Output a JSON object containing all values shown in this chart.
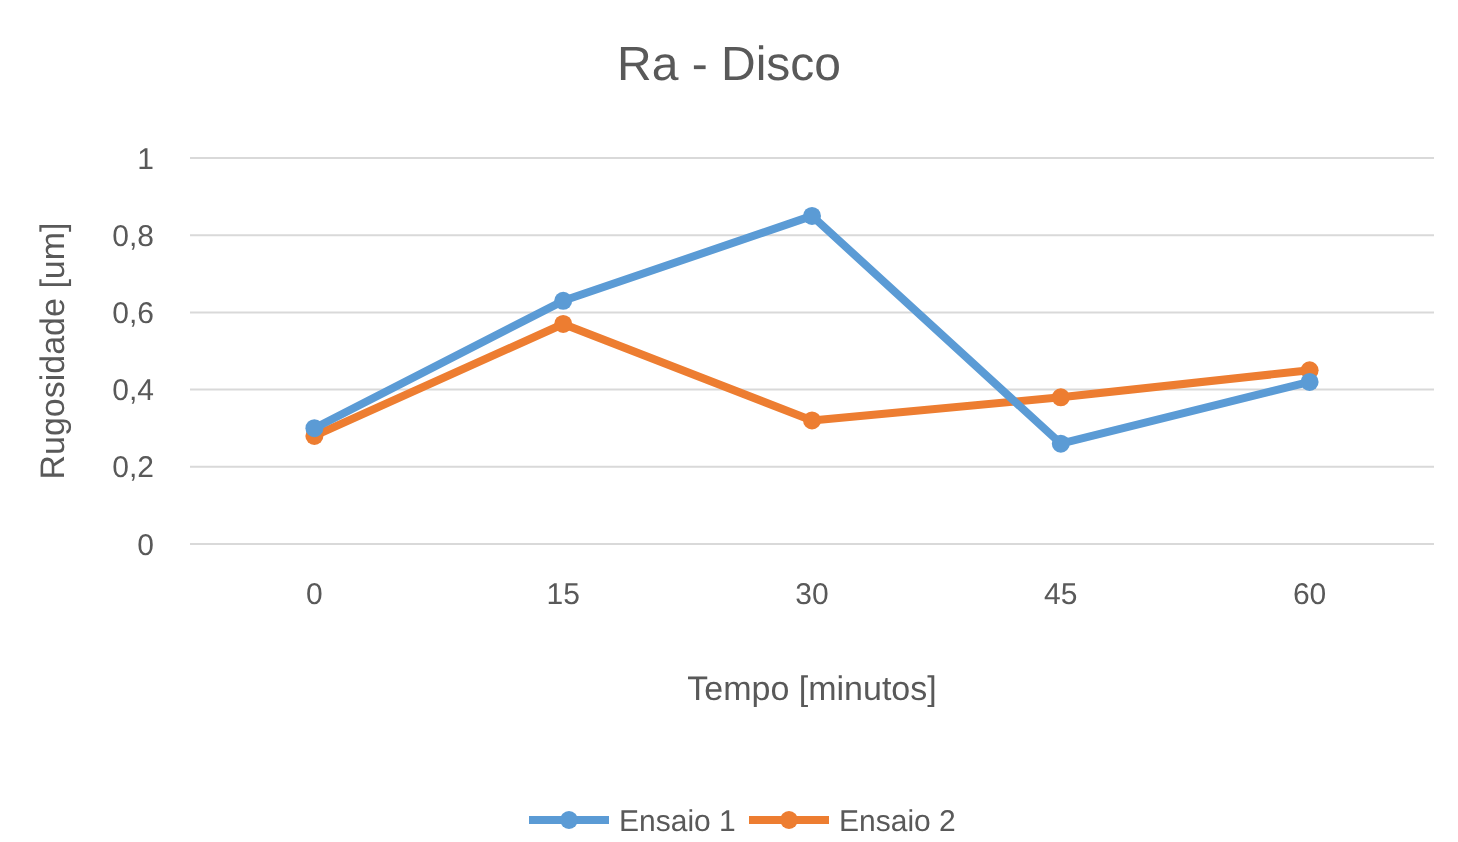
{
  "chart_data": {
    "type": "line",
    "title": "Ra - Disco",
    "xlabel": "Tempo [minutos]",
    "ylabel": "Rugosidade [um]",
    "categories": [
      "0",
      "15",
      "30",
      "45",
      "60"
    ],
    "series": [
      {
        "name": "Ensaio 1",
        "color": "#5b9bd5",
        "values": [
          0.3,
          0.63,
          0.85,
          0.26,
          0.42
        ]
      },
      {
        "name": "Ensaio 2",
        "color": "#ed7d31",
        "values": [
          0.28,
          0.57,
          0.32,
          0.38,
          0.45
        ]
      }
    ],
    "ylim": [
      0,
      1
    ],
    "yticks": [
      0,
      {
        "value": 0.2,
        "label": "0,2"
      },
      {
        "value": 0.4,
        "label": "0,4"
      },
      {
        "value": 0.6,
        "label": "0,6"
      },
      {
        "value": 0.8,
        "label": "0,8"
      },
      1
    ],
    "grid": "y",
    "legend": "bottom",
    "marker": "circle",
    "line_style": "solid"
  }
}
